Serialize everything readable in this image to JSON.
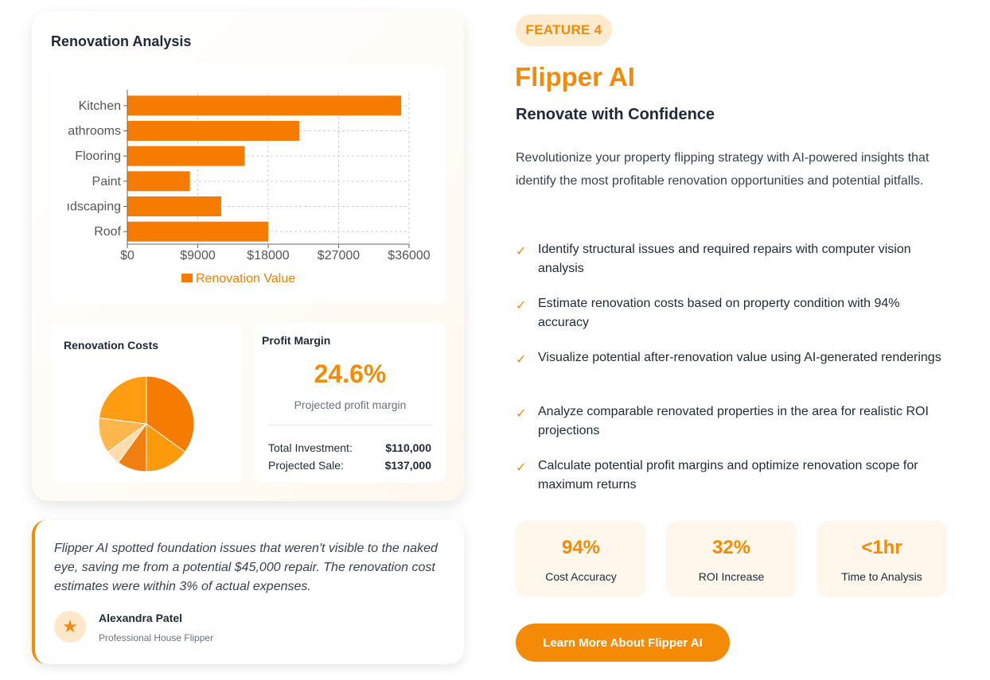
{
  "analysis": {
    "title": "Renovation Analysis"
  },
  "chart_data": [
    {
      "type": "bar",
      "orientation": "horizontal",
      "categories": [
        "Kitchen",
        "Bathrooms",
        "Flooring",
        "Paint",
        "Landscaping",
        "Roof"
      ],
      "category_labels_visible": [
        "Kitchen",
        "athrooms",
        "Flooring",
        "Paint",
        "ıdscaping",
        "Roof"
      ],
      "series": [
        {
          "name": "Renovation Value",
          "values": [
            35000,
            22000,
            15000,
            8000,
            12000,
            18000
          ]
        }
      ],
      "xticks": [
        "$0",
        "$9000",
        "$18000",
        "$27000",
        "$36000"
      ],
      "xlim": [
        0,
        36000
      ],
      "grid": true,
      "legend_position": "bottom",
      "color": "#f57c00"
    },
    {
      "type": "pie",
      "title": "Renovation Costs",
      "values": [
        35,
        15,
        10,
        5,
        12,
        23
      ],
      "colors": [
        "#f57c00",
        "#fb9a0a",
        "#ef7f11",
        "#ffdcae",
        "#ffb74d",
        "#ff9c12"
      ]
    }
  ],
  "profit": {
    "title": "Profit Margin",
    "value": "24.6%",
    "subtitle": "Projected profit margin",
    "investment_label": "Total Investment:",
    "investment_value": "$110,000",
    "sale_label": "Projected Sale:",
    "sale_value": "$137,000"
  },
  "testimonial": {
    "quote": "Flipper AI spotted foundation issues that weren't visible to the naked eye, saving me from a potential $45,000 repair. The renovation cost estimates were within 3% of actual expenses.",
    "avatar_icon": "star-icon",
    "name": "Alexandra Patel",
    "role": "Professional House Flipper"
  },
  "feature": {
    "badge": "FEATURE 4",
    "title": "Flipper AI",
    "subtitle": "Renovate with Confidence",
    "description": "Revolutionize your property flipping strategy with AI-powered insights that identify the most profitable renovation opportunities and potential pitfalls.",
    "check_icon": "check-icon",
    "benefits": [
      "Identify structural issues and required repairs with computer vision analysis",
      "Estimate renovation costs based on property condition with 94% accuracy",
      "Visualize potential after-renovation value using AI-generated renderings",
      "Analyze comparable renovated properties in the area for realistic ROI projections",
      "Calculate potential profit margins and optimize renovation scope for maximum returns"
    ],
    "stats": [
      {
        "value": "94%",
        "label": "Cost Accuracy"
      },
      {
        "value": "32%",
        "label": "ROI Increase"
      },
      {
        "value": "<1hr",
        "label": "Time to Analysis"
      }
    ],
    "cta_label": "Learn More About Flipper AI"
  },
  "colors": {
    "accent": "#f58a07",
    "accent_soft": "#fdebd0",
    "card_tint": "#fff6ec"
  }
}
